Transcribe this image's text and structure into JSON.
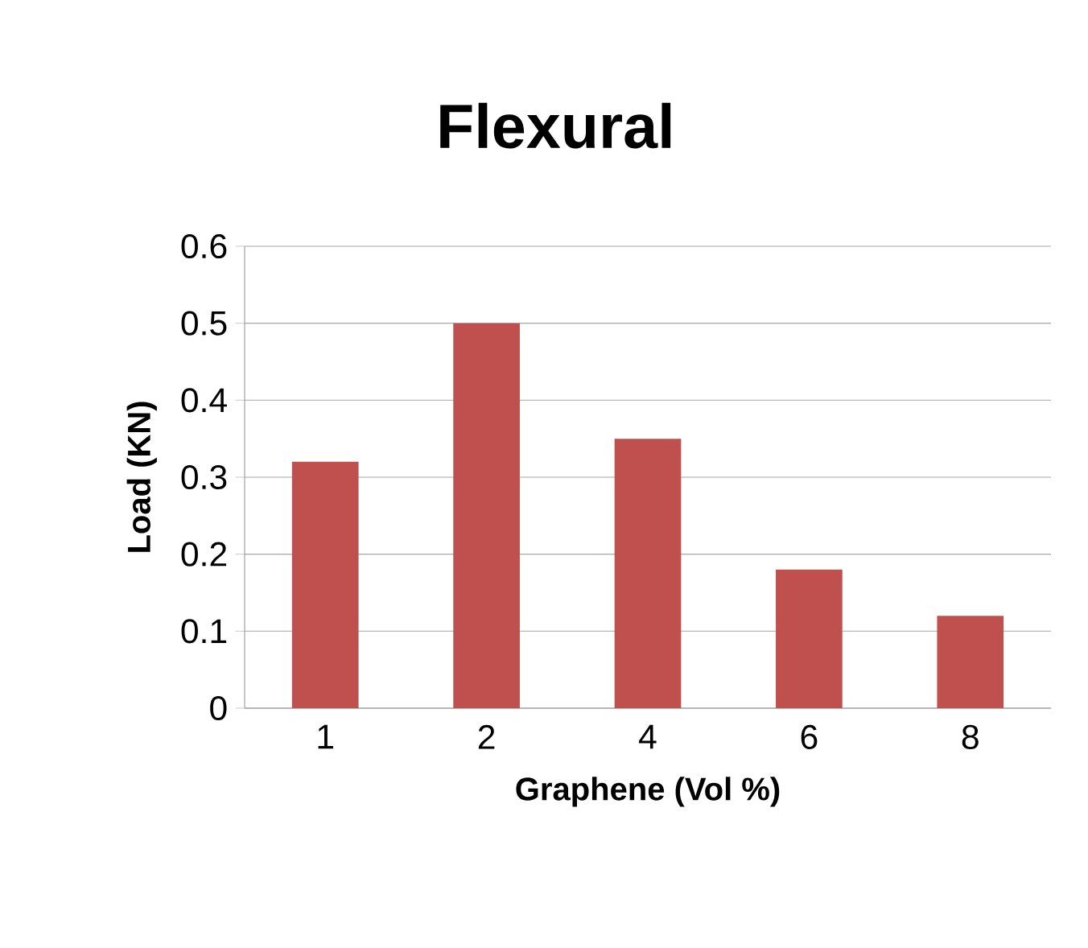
{
  "chart_data": {
    "type": "bar",
    "title": "Flexural",
    "xlabel": "Graphene (Vol %)",
    "ylabel": "Load (KN)",
    "categories": [
      "1",
      "2",
      "4",
      "6",
      "8"
    ],
    "values": [
      0.32,
      0.5,
      0.35,
      0.18,
      0.12
    ],
    "color": "#c0504d",
    "ylim": [
      0,
      0.6
    ],
    "yticks": [
      0,
      0.1,
      0.2,
      0.3,
      0.4,
      0.5,
      0.6
    ],
    "grid": "y"
  }
}
